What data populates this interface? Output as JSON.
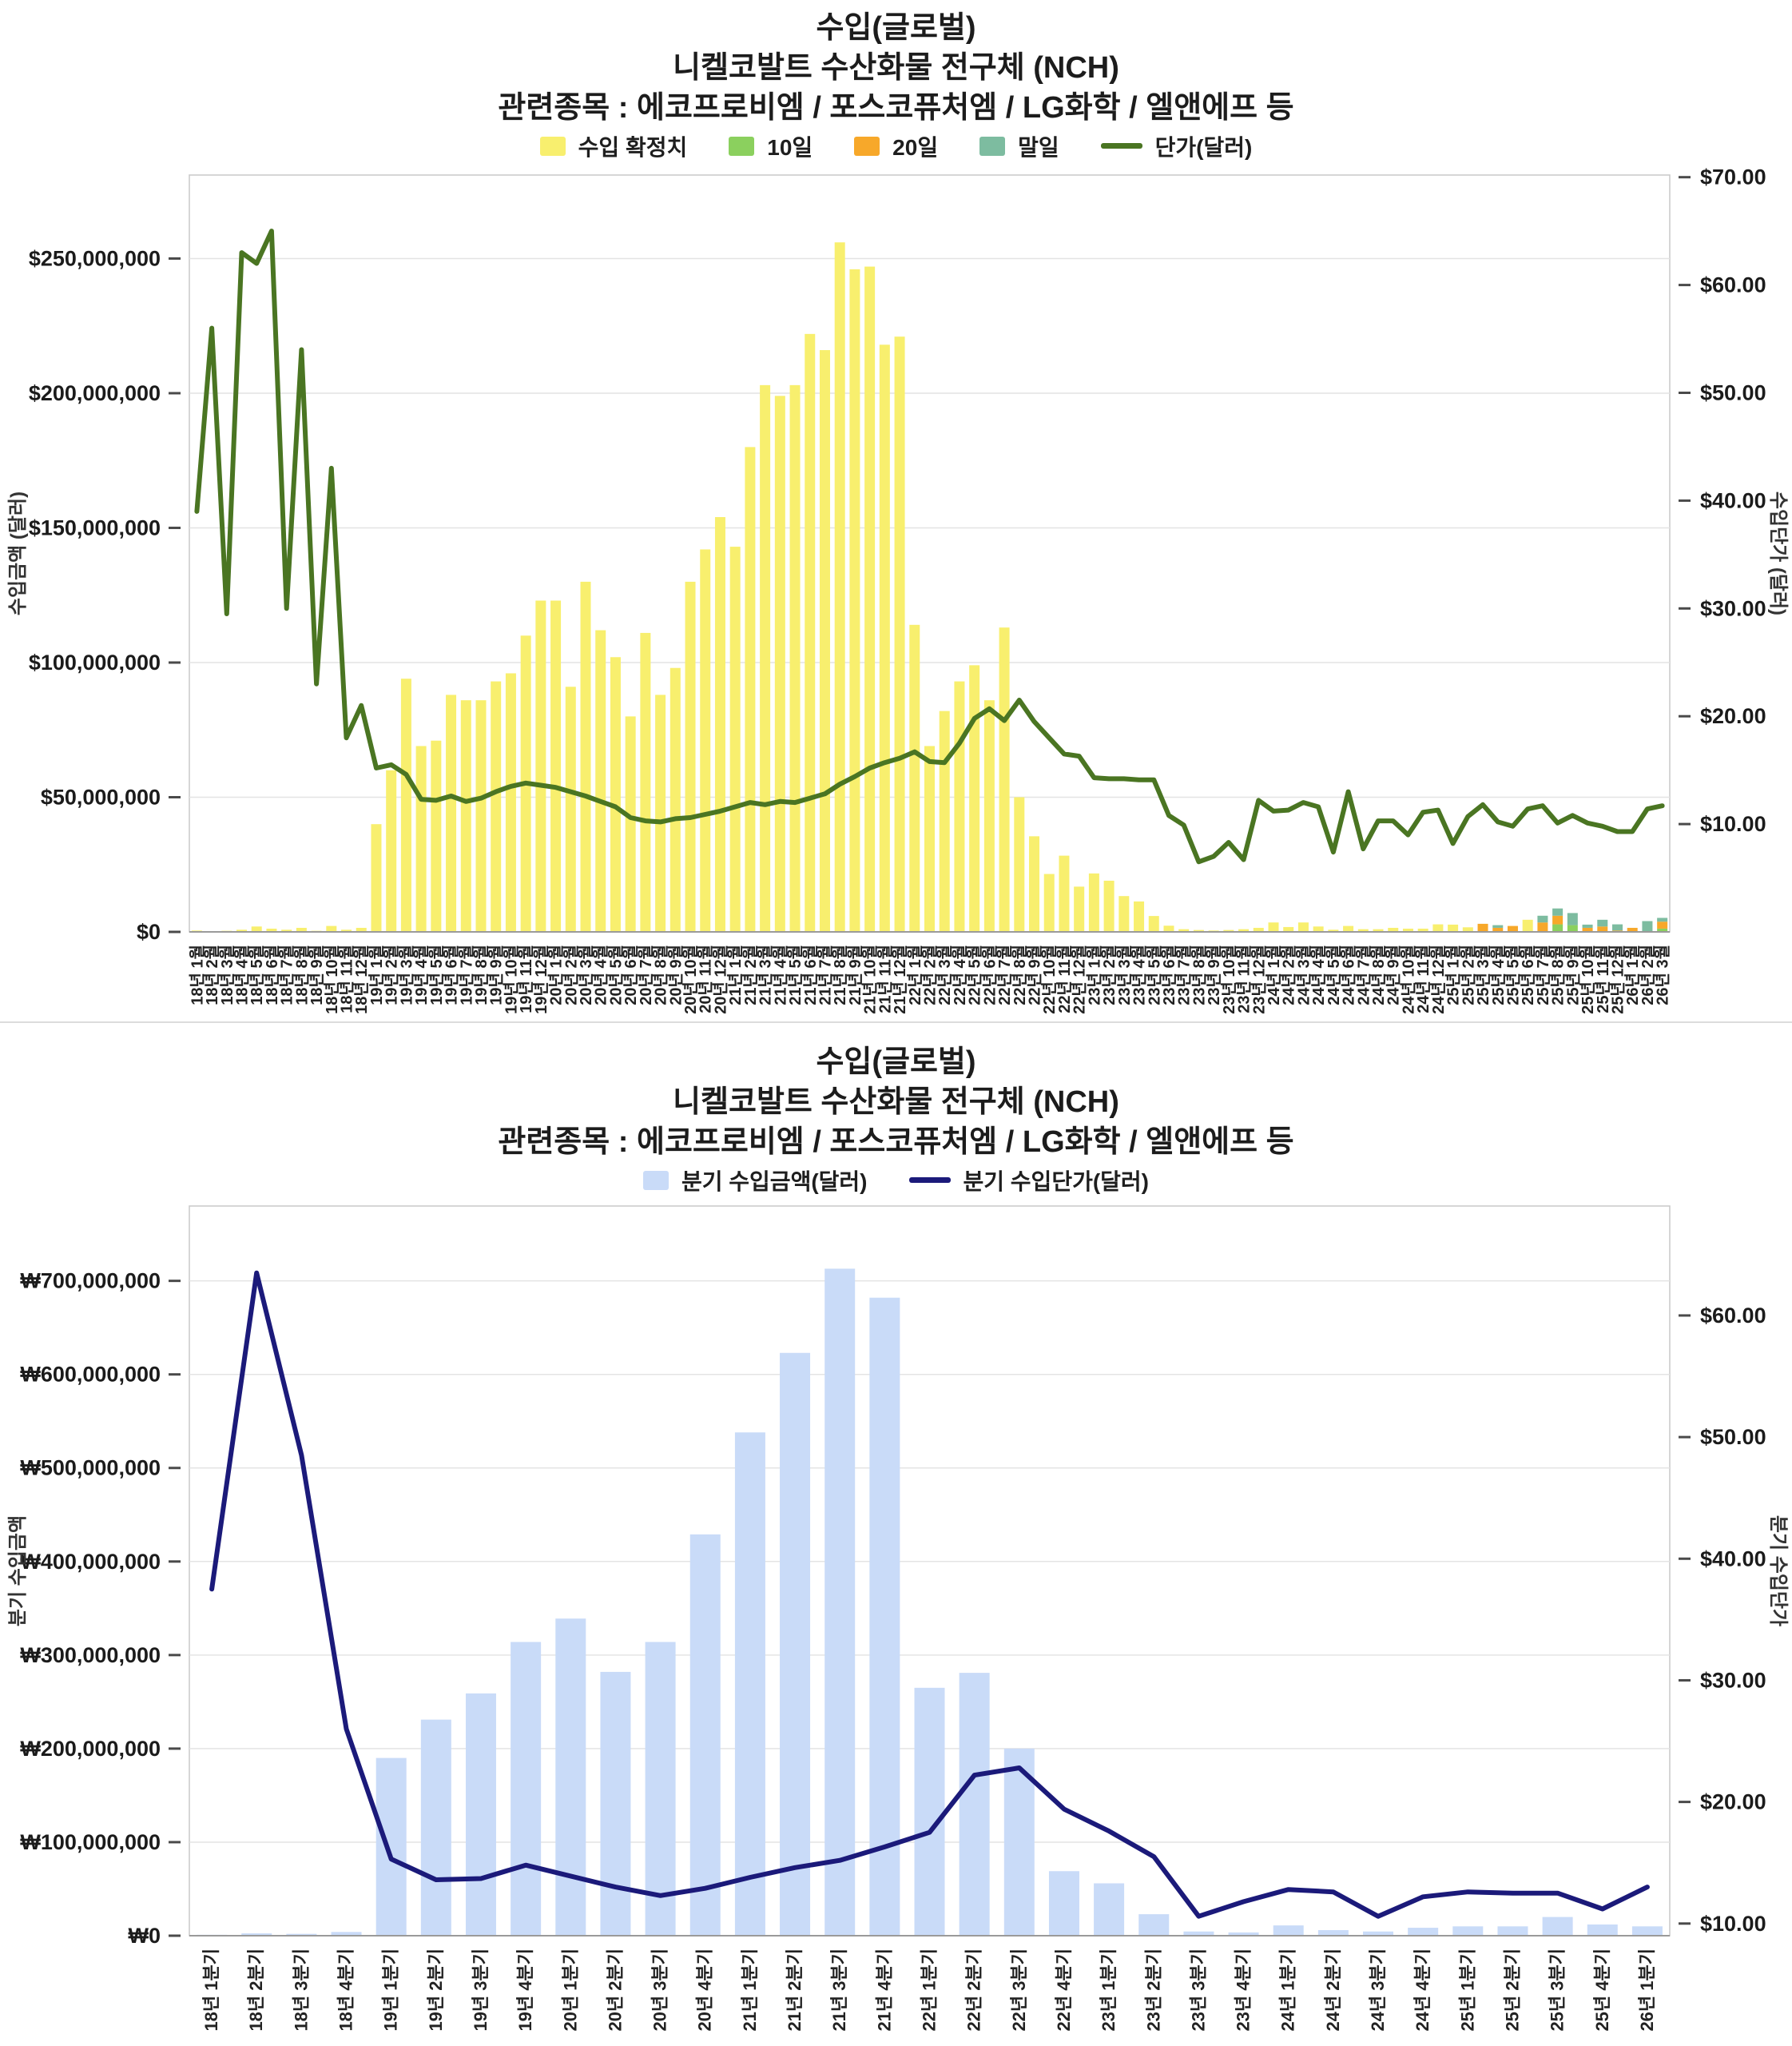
{
  "chart_data": [
    {
      "type": "bar",
      "id": "monthly",
      "title_lines": [
        "수입(글로벌)",
        "니켈코발트 수산화물 전구체 (NCH)",
        "관련종목 : 에코프로비엠 / 포스코퓨처엠 / LG화학 / 엘앤에프 등"
      ],
      "legend": [
        {
          "label": "수입 확정치",
          "color": "#F8EF6E",
          "kind": "box"
        },
        {
          "label": "10일",
          "color": "#8BD05E",
          "kind": "box"
        },
        {
          "label": "20일",
          "color": "#F7A82A",
          "kind": "box"
        },
        {
          "label": "말일",
          "color": "#7DBCA0",
          "kind": "box"
        },
        {
          "label": "단가(달러)",
          "color": "#4A7522",
          "kind": "line"
        }
      ],
      "categories": [
        "18년 1월",
        "18년 2월",
        "18년 3월",
        "18년 4월",
        "18년 5월",
        "18년 6월",
        "18년 7월",
        "18년 8월",
        "18년 9월",
        "18년 10월",
        "18년 11월",
        "18년 12월",
        "19년 1월",
        "19년 2월",
        "19년 3월",
        "19년 4월",
        "19년 5월",
        "19년 6월",
        "19년 7월",
        "19년 8월",
        "19년 9월",
        "19년 10월",
        "19년 11월",
        "19년 12월",
        "20년 1월",
        "20년 2월",
        "20년 3월",
        "20년 4월",
        "20년 5월",
        "20년 6월",
        "20년 7월",
        "20년 8월",
        "20년 9월",
        "20년 10월",
        "20년 11월",
        "20년 12월",
        "21년 1월",
        "21년 2월",
        "21년 3월",
        "21년 4월",
        "21년 5월",
        "21년 6월",
        "21년 7월",
        "21년 8월",
        "21년 9월",
        "21년 10월",
        "21년 11월",
        "21년 12월",
        "22년 1월",
        "22년 2월",
        "22년 3월",
        "22년 4월",
        "22년 5월",
        "22년 6월",
        "22년 7월",
        "22년 8월",
        "22년 9월",
        "22년 10월",
        "22년 11월",
        "22년 12월",
        "23년 1월",
        "23년 2월",
        "23년 3월",
        "23년 4월",
        "23년 5월",
        "23년 6월",
        "23년 7월",
        "23년 8월",
        "23년 9월",
        "23년 10월",
        "23년 11월",
        "23년 12월",
        "24년 1월",
        "24년 2월",
        "24년 3월",
        "24년 4월",
        "24년 5월",
        "24년 6월",
        "24년 7월",
        "24년 8월",
        "24년 9월",
        "24년 10월",
        "24년 11월",
        "24년 12월",
        "25년 1월",
        "25년 2월",
        "25년 3월",
        "25년 4월",
        "25년 5월",
        "25년 6월",
        "25년 7월",
        "25년 8월",
        "25년 9월",
        "25년 10월",
        "25년 11월",
        "25년 12월",
        "26년 1월",
        "26년 2월",
        "26년 3월"
      ],
      "value_unit": "USD millions",
      "series": [
        {
          "name": "수입 확정치",
          "color": "#F8EF6E",
          "values": [
            0.5,
            0.3,
            0.4,
            0.8,
            2.0,
            1.2,
            0.8,
            1.5,
            0.4,
            2.2,
            0.8,
            1.5,
            40,
            60,
            94,
            69,
            71,
            88,
            86,
            86,
            93,
            96,
            110,
            123,
            123,
            91,
            130,
            112,
            102,
            80,
            111,
            88,
            98,
            130,
            142,
            154,
            143,
            180,
            203,
            199,
            203,
            222,
            216,
            256,
            246,
            247,
            218,
            221,
            114,
            69,
            82,
            93,
            99,
            86,
            113,
            50,
            35.5,
            21.5,
            28.3,
            16.8,
            21.7,
            19,
            13.3,
            11.3,
            5.9,
            2.3,
            1.0,
            0.7,
            0.5,
            0.7,
            1.0,
            1.5,
            3.5,
            1.8,
            3.5,
            2.0,
            0.8,
            2.2,
            1.0,
            1.0,
            1.5,
            1.2,
            1.2,
            2.8,
            2.7,
            1.7,
            0,
            0,
            0,
            4.5,
            0,
            0,
            0,
            0,
            0,
            0,
            0,
            0,
            0
          ]
        },
        {
          "name": "10일",
          "color": "#8BD05E",
          "values": [
            0,
            0,
            0,
            0,
            0,
            0,
            0,
            0,
            0,
            0,
            0,
            0,
            0,
            0,
            0,
            0,
            0,
            0,
            0,
            0,
            0,
            0,
            0,
            0,
            0,
            0,
            0,
            0,
            0,
            0,
            0,
            0,
            0,
            0,
            0,
            0,
            0,
            0,
            0,
            0,
            0,
            0,
            0,
            0,
            0,
            0,
            0,
            0,
            0,
            0,
            0,
            0,
            0,
            0,
            0,
            0,
            0,
            0,
            0,
            0,
            0,
            0,
            0,
            0,
            0,
            0,
            0,
            0,
            0,
            0,
            0,
            0,
            0,
            0,
            0,
            0,
            0,
            0,
            0,
            0,
            0,
            0,
            0,
            0,
            0,
            0,
            0,
            0,
            0,
            0,
            0,
            2.8,
            2.5,
            0,
            0,
            0,
            0.3,
            0,
            1.2
          ]
        },
        {
          "name": "20일",
          "color": "#F7A82A",
          "values": [
            0,
            0,
            0,
            0,
            0,
            0,
            0,
            0,
            0,
            0,
            0,
            0,
            0,
            0,
            0,
            0,
            0,
            0,
            0,
            0,
            0,
            0,
            0,
            0,
            0,
            0,
            0,
            0,
            0,
            0,
            0,
            0,
            0,
            0,
            0,
            0,
            0,
            0,
            0,
            0,
            0,
            0,
            0,
            0,
            0,
            0,
            0,
            0,
            0,
            0,
            0,
            0,
            0,
            0,
            0,
            0,
            0,
            0,
            0,
            0,
            0,
            0,
            0,
            0,
            0,
            0,
            0,
            0,
            0,
            0,
            0,
            0,
            0,
            0,
            0,
            0,
            0,
            0,
            0,
            0,
            0,
            0,
            0,
            0,
            0,
            0,
            3.0,
            1.5,
            2.2,
            0,
            3.5,
            3.2,
            0,
            1.5,
            2.0,
            0.5,
            1.2,
            0,
            2.6
          ]
        },
        {
          "name": "말일",
          "color": "#7DBCA0",
          "values": [
            0,
            0,
            0,
            0,
            0,
            0,
            0,
            0,
            0,
            0,
            0,
            0,
            0,
            0,
            0,
            0,
            0,
            0,
            0,
            0,
            0,
            0,
            0,
            0,
            0,
            0,
            0,
            0,
            0,
            0,
            0,
            0,
            0,
            0,
            0,
            0,
            0,
            0,
            0,
            0,
            0,
            0,
            0,
            0,
            0,
            0,
            0,
            0,
            0,
            0,
            0,
            0,
            0,
            0,
            0,
            0,
            0,
            0,
            0,
            0,
            0,
            0,
            0,
            0,
            0,
            0,
            0,
            0,
            0,
            0,
            0,
            0,
            0,
            0,
            0,
            0,
            0,
            0,
            0,
            0,
            0,
            0,
            0,
            0,
            0,
            0,
            0,
            1.0,
            0,
            0,
            2.5,
            2.7,
            4.5,
            1.2,
            2.5,
            2.3,
            0,
            4.0,
            1.4
          ]
        }
      ],
      "line_series": {
        "name": "단가(달러)",
        "color": "#4A7522",
        "axis": "right",
        "unit": "USD",
        "values": [
          39,
          56,
          29.5,
          63,
          62,
          65,
          30,
          54,
          23,
          43,
          18,
          21,
          15.2,
          15.5,
          14.6,
          12.3,
          12.2,
          12.6,
          12.1,
          12.4,
          13.0,
          13.5,
          13.8,
          13.6,
          13.4,
          13.0,
          12.6,
          12.1,
          11.6,
          10.6,
          10.3,
          10.2,
          10.5,
          10.6,
          10.9,
          11.2,
          11.6,
          12.0,
          11.8,
          12.1,
          12.0,
          12.4,
          12.8,
          13.7,
          14.4,
          15.2,
          15.7,
          16.1,
          16.7,
          15.8,
          15.7,
          17.5,
          19.8,
          20.7,
          19.6,
          21.5,
          19.5,
          18.0,
          16.5,
          16.3,
          14.3,
          14.2,
          14.2,
          14.1,
          14.1,
          10.8,
          9.9,
          6.5,
          7.0,
          8.3,
          6.7,
          12.2,
          11.2,
          11.3,
          12.0,
          11.6,
          7.4,
          13.0,
          7.7,
          10.3,
          10.3,
          9.0,
          11.1,
          11.3,
          8.2,
          10.7,
          11.8,
          10.2,
          9.8,
          11.4,
          11.7,
          10.1,
          10.8,
          10.1,
          9.8,
          9.3,
          9.3,
          11.4,
          11.7
        ]
      },
      "y_left": {
        "title": "수입금액 (달러)",
        "min": 0,
        "max": 281,
        "ticks": [
          {
            "label": "$0",
            "value": 0
          },
          {
            "label": "$50,000,000",
            "value": 50
          },
          {
            "label": "$100,000,000",
            "value": 100
          },
          {
            "label": "$150,000,000",
            "value": 150
          },
          {
            "label": "$200,000,000",
            "value": 200
          },
          {
            "label": "$250,000,000",
            "value": 250
          }
        ]
      },
      "y_right": {
        "title": "수입단가 (달러)",
        "min": 0,
        "max": 70.2,
        "ticks": [
          {
            "label": "$10.00",
            "value": 10
          },
          {
            "label": "$20.00",
            "value": 20
          },
          {
            "label": "$30.00",
            "value": 30
          },
          {
            "label": "$40.00",
            "value": 40
          },
          {
            "label": "$50.00",
            "value": 50
          },
          {
            "label": "$60.00",
            "value": 60
          },
          {
            "label": "$70.00",
            "value": 70
          }
        ]
      },
      "grid": true,
      "legend_position": "top"
    },
    {
      "type": "bar",
      "id": "quarterly",
      "title_lines": [
        "수입(글로벌)",
        "니켈코발트 수산화물 전구체 (NCH)",
        "관련종목 : 에코프로비엠 / 포스코퓨처엠 / LG화학 / 엘앤에프 등"
      ],
      "legend": [
        {
          "label": "분기 수입금액(달러)",
          "color": "#C9DBF8",
          "kind": "box"
        },
        {
          "label": "분기 수입단가(달러)",
          "color": "#1B1A7A",
          "kind": "line"
        }
      ],
      "categories": [
        "18년 1분기",
        "18년 2분기",
        "18년 3분기",
        "18년 4분기",
        "19년 1분기",
        "19년 2분기",
        "19년 3분기",
        "19년 4분기",
        "20년 1분기",
        "20년 2분기",
        "20년 3분기",
        "20년 4분기",
        "21년 1분기",
        "21년 2분기",
        "21년 3분기",
        "21년 4분기",
        "22년 1분기",
        "22년 2분기",
        "22년 3분기",
        "22년 4분기",
        "23년 1분기",
        "23년 2분기",
        "23년 3분기",
        "23년 4분기",
        "24년 1분기",
        "24년 2분기",
        "24년 3분기",
        "24년 4분기",
        "25년 1분기",
        "25년 2분기",
        "25년 3분기",
        "25년 4분기",
        "26년 1분기"
      ],
      "value_unit": "KRW millions (axis shown with ₩)",
      "series": [
        {
          "name": "분기 수입금액(달러)",
          "color": "#C9DBF8",
          "values": [
            1,
            2.5,
            2,
            4,
            190,
            231,
            259,
            314,
            339,
            282,
            314,
            429,
            538,
            623,
            713,
            682,
            265,
            281,
            200,
            69,
            56,
            23,
            4.5,
            3.5,
            11,
            6,
            4.5,
            8.5,
            10,
            10,
            20,
            12,
            10
          ]
        }
      ],
      "line_series": {
        "name": "분기 수입단가(달러)",
        "color": "#1B1A7A",
        "axis": "right",
        "unit": "USD",
        "values": [
          37.5,
          63.5,
          48.5,
          26,
          15.3,
          13.6,
          13.7,
          14.8,
          13.9,
          13.0,
          12.3,
          12.9,
          13.8,
          14.6,
          15.2,
          16.3,
          17.5,
          22.2,
          22.8,
          19.4,
          17.6,
          15.5,
          10.6,
          11.8,
          12.8,
          12.6,
          10.6,
          12.2,
          12.6,
          12.5,
          12.5,
          11.2,
          13.0
        ]
      },
      "y_left": {
        "title": "분기 수입금액",
        "min": 0,
        "max": 780,
        "ticks": [
          {
            "label": "₩0",
            "value": 0
          },
          {
            "label": "₩100,000,000",
            "value": 100
          },
          {
            "label": "₩200,000,000",
            "value": 200
          },
          {
            "label": "₩300,000,000",
            "value": 300
          },
          {
            "label": "₩400,000,000",
            "value": 400
          },
          {
            "label": "₩500,000,000",
            "value": 500
          },
          {
            "label": "₩600,000,000",
            "value": 600
          },
          {
            "label": "₩700,000,000",
            "value": 700
          }
        ]
      },
      "y_right": {
        "title": "분기 수입단가",
        "min": 9,
        "max": 69,
        "ticks": [
          {
            "label": "$10.00",
            "value": 10
          },
          {
            "label": "$20.00",
            "value": 20
          },
          {
            "label": "$30.00",
            "value": 30
          },
          {
            "label": "$40.00",
            "value": 40
          },
          {
            "label": "$50.00",
            "value": 50
          },
          {
            "label": "$60.00",
            "value": 60
          }
        ]
      },
      "grid": true,
      "legend_position": "top"
    }
  ]
}
